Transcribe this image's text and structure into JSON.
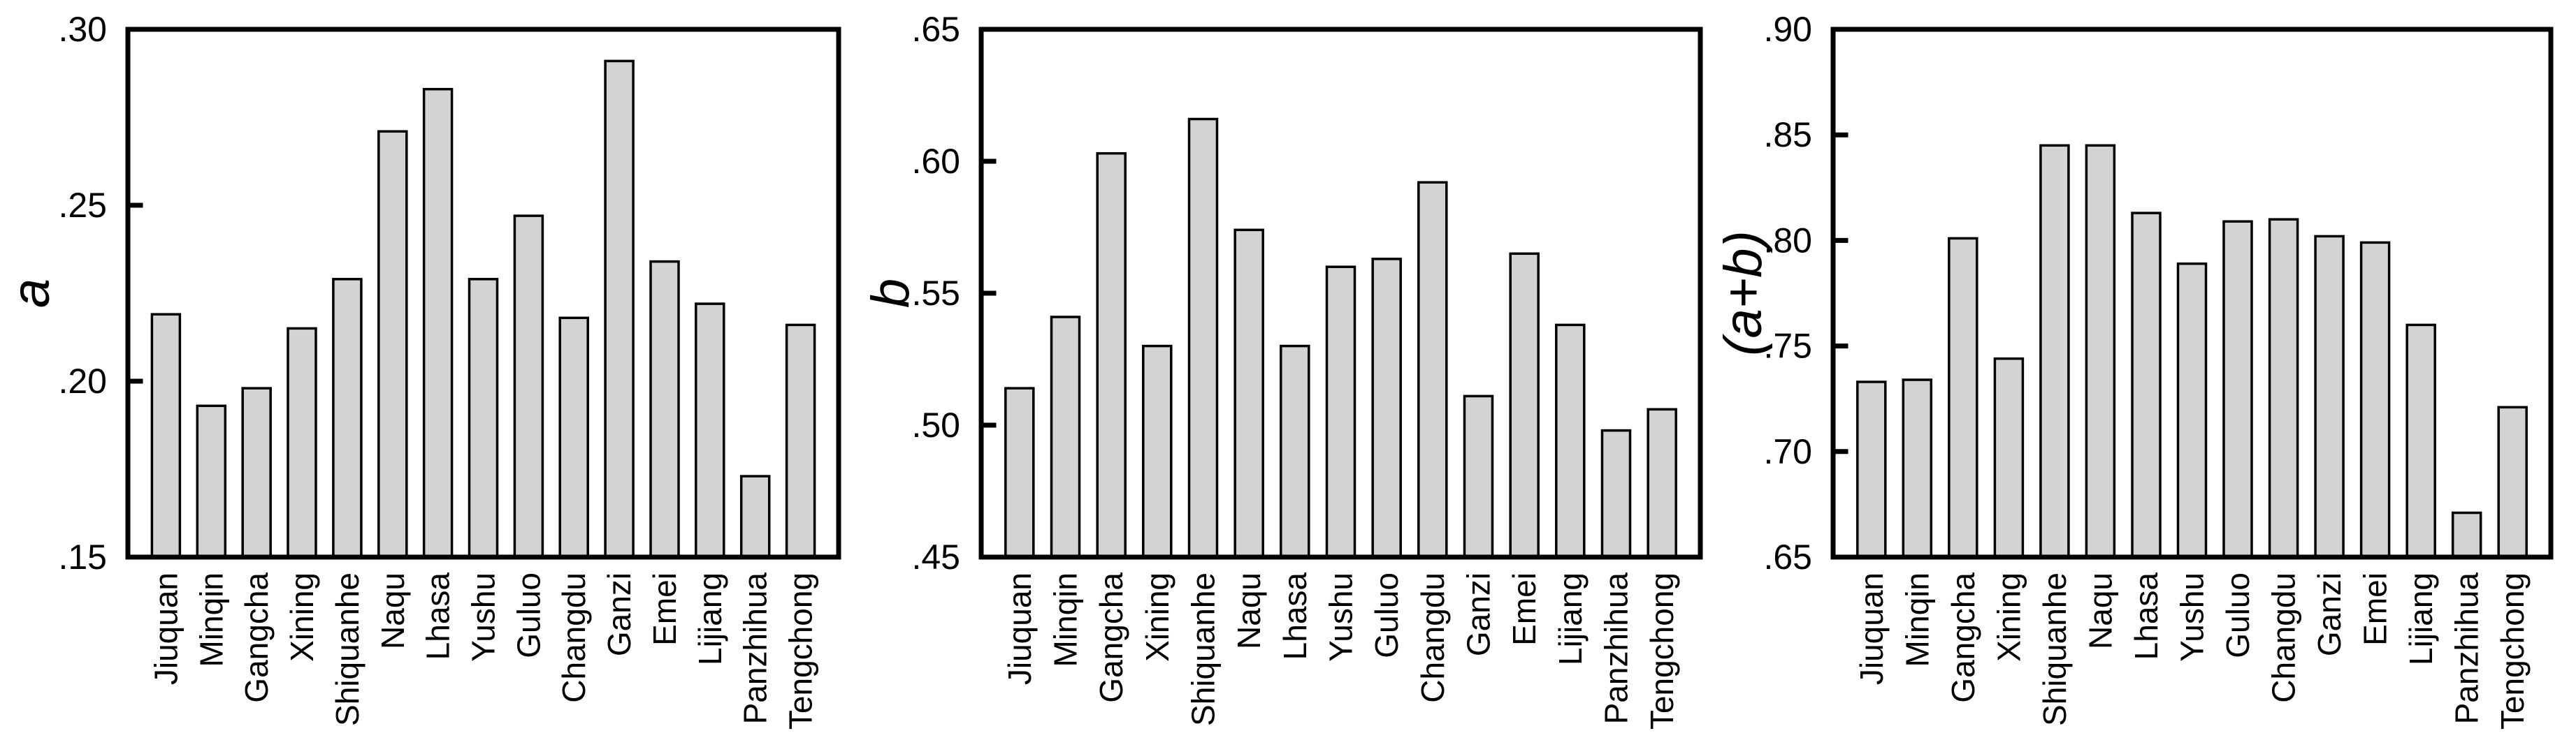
{
  "figure": {
    "background": "#ffffff",
    "description": "Three-panel bar chart figure for 15 stations"
  },
  "style": {
    "bar_fill": "#d3d3d3",
    "bar_stroke": "#000000",
    "frame_color": "#000000",
    "text_color": "#000000"
  },
  "categories": [
    "Jiuquan",
    "Minqin",
    "Gangcha",
    "Xining",
    "Shiquanhe",
    "Naqu",
    "Lhasa",
    "Yushu",
    "Guluo",
    "Changdu",
    "Ganzi",
    "Emei",
    "Lijiang",
    "Panzhihua",
    "Tengchong"
  ],
  "chart_data": [
    {
      "type": "bar",
      "title": "a",
      "ylabel": "a",
      "xlabel": "",
      "categories": [
        "Jiuquan",
        "Minqin",
        "Gangcha",
        "Xining",
        "Shiquanhe",
        "Naqu",
        "Lhasa",
        "Yushu",
        "Guluo",
        "Changdu",
        "Ganzi",
        "Emei",
        "Lijiang",
        "Panzhihua",
        "Tengchong"
      ],
      "values": [
        0.219,
        0.193,
        0.198,
        0.215,
        0.229,
        0.271,
        0.283,
        0.229,
        0.247,
        0.218,
        0.291,
        0.234,
        0.222,
        0.173,
        0.216
      ],
      "ylim": [
        0.15,
        0.3
      ],
      "yticks": [
        0.3,
        0.25,
        0.2,
        0.15
      ],
      "ytick_labels": [
        ".30",
        ".25",
        ".20",
        ".15"
      ],
      "grid": false,
      "legend": false
    },
    {
      "type": "bar",
      "title": "b",
      "ylabel": "b",
      "xlabel": "",
      "categories": [
        "Jiuquan",
        "Minqin",
        "Gangcha",
        "Xining",
        "Shiquanhe",
        "Naqu",
        "Lhasa",
        "Yushu",
        "Guluo",
        "Changdu",
        "Ganzi",
        "Emei",
        "Lijiang",
        "Panzhihua",
        "Tengchong"
      ],
      "values": [
        0.514,
        0.541,
        0.603,
        0.53,
        0.616,
        0.574,
        0.53,
        0.56,
        0.563,
        0.592,
        0.511,
        0.565,
        0.538,
        0.498,
        0.506
      ],
      "ylim": [
        0.45,
        0.65
      ],
      "yticks": [
        0.65,
        0.6,
        0.55,
        0.5,
        0.45
      ],
      "ytick_labels": [
        ".65",
        ".60",
        ".55",
        ".50",
        ".45"
      ],
      "grid": false,
      "legend": false
    },
    {
      "type": "bar",
      "title": "(a+b)",
      "ylabel": "(a+b)",
      "xlabel": "",
      "categories": [
        "Jiuquan",
        "Minqin",
        "Gangcha",
        "Xining",
        "Shiquanhe",
        "Naqu",
        "Lhasa",
        "Yushu",
        "Guluo",
        "Changdu",
        "Ganzi",
        "Emei",
        "Lijiang",
        "Panzhihua",
        "Tengchong"
      ],
      "values": [
        0.733,
        0.734,
        0.801,
        0.744,
        0.845,
        0.845,
        0.813,
        0.789,
        0.809,
        0.81,
        0.802,
        0.799,
        0.76,
        0.671,
        0.721
      ],
      "ylim": [
        0.65,
        0.9
      ],
      "yticks": [
        0.9,
        0.85,
        0.8,
        0.75,
        0.7,
        0.65
      ],
      "ytick_labels": [
        ".90",
        ".85",
        ".80",
        ".75",
        ".70",
        ".65"
      ],
      "grid": false,
      "legend": false
    }
  ]
}
